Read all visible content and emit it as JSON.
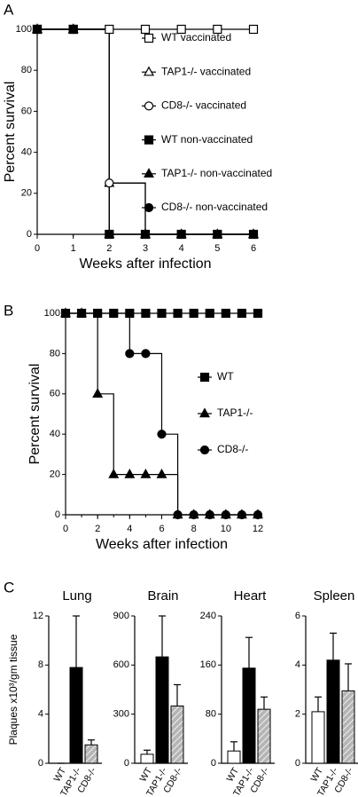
{
  "chart_data": [
    {
      "type": "line",
      "step": true,
      "panel_label": "A",
      "xlabel": "Weeks after infection",
      "ylabel": "Percent survival",
      "x": [
        0,
        1,
        2,
        3,
        4,
        5,
        6
      ],
      "xlim": [
        0,
        6
      ],
      "xticks": [
        0,
        1,
        2,
        3,
        4,
        5,
        6
      ],
      "ylim": [
        0,
        100
      ],
      "yticks": [
        0,
        20,
        40,
        60,
        80,
        100
      ],
      "series": [
        {
          "name": "WT vaccinated",
          "color": "#000000",
          "marker": "square",
          "filled": false,
          "values": [
            100,
            100,
            100,
            100,
            100,
            100,
            100
          ]
        },
        {
          "name": "TAP1-/- vaccinated",
          "color": "#000000",
          "marker": "triangle",
          "filled": false,
          "values": [
            100,
            100,
            25,
            0,
            0,
            0,
            0
          ]
        },
        {
          "name": "CD8-/- vaccinated",
          "color": "#000000",
          "marker": "circle",
          "filled": false,
          "values": [
            100,
            100,
            25,
            0,
            0,
            0,
            0
          ]
        },
        {
          "name": "WT non-vaccinated",
          "color": "#000000",
          "marker": "square",
          "filled": true,
          "values": [
            100,
            100,
            0,
            0,
            0,
            0,
            0
          ]
        },
        {
          "name": "TAP1-/- non-vaccinated",
          "color": "#000000",
          "marker": "triangle",
          "filled": true,
          "values": [
            100,
            100,
            0,
            0,
            0,
            0,
            0
          ]
        },
        {
          "name": "CD8-/- non-vaccinated",
          "color": "#000000",
          "marker": "circle",
          "filled": true,
          "values": [
            100,
            100,
            0,
            0,
            0,
            0,
            0
          ]
        }
      ]
    },
    {
      "type": "line",
      "step": true,
      "panel_label": "B",
      "xlabel": "Weeks after infection",
      "ylabel": "Percent survival",
      "x": [
        0,
        1,
        2,
        3,
        4,
        5,
        6,
        7,
        8,
        9,
        10,
        11,
        12
      ],
      "xlim": [
        0,
        12
      ],
      "xticks": [
        0,
        2,
        4,
        6,
        8,
        10,
        12
      ],
      "ylim": [
        0,
        100
      ],
      "yticks": [
        0,
        20,
        40,
        60,
        80,
        100
      ],
      "series": [
        {
          "name": "WT",
          "color": "#000000",
          "marker": "square",
          "filled": true,
          "values": [
            100,
            100,
            100,
            100,
            100,
            100,
            100,
            100,
            100,
            100,
            100,
            100,
            100
          ]
        },
        {
          "name": "TAP1-/-",
          "color": "#000000",
          "marker": "triangle",
          "filled": true,
          "values": [
            100,
            100,
            60,
            20,
            20,
            20,
            20,
            0,
            0,
            0,
            0,
            0,
            0
          ]
        },
        {
          "name": "CD8-/-",
          "color": "#000000",
          "marker": "circle",
          "filled": true,
          "values": [
            100,
            100,
            100,
            100,
            80,
            80,
            40,
            0,
            0,
            0,
            0,
            0,
            0
          ]
        }
      ]
    },
    {
      "type": "bar",
      "panel_label": "C",
      "title": "Lung",
      "ylabel": "Plaques x10³/gm tissue",
      "categories": [
        "WT",
        "TAP1-/-",
        "CD8-/-"
      ],
      "values": [
        0,
        7.8,
        1.5
      ],
      "errors": [
        0,
        4.2,
        0.4
      ],
      "colors": [
        "#ffffff",
        "#000000",
        "#b5b5b5"
      ],
      "hatched": [
        false,
        false,
        true
      ],
      "ylim": [
        0,
        12
      ],
      "yticks": [
        0,
        4,
        8,
        12
      ]
    },
    {
      "type": "bar",
      "title": "Brain",
      "categories": [
        "WT",
        "TAP1-/-",
        "CD8-/-"
      ],
      "values": [
        55,
        650,
        350
      ],
      "errors": [
        25,
        250,
        130
      ],
      "colors": [
        "#ffffff",
        "#000000",
        "#b5b5b5"
      ],
      "hatched": [
        false,
        false,
        true
      ],
      "ylim": [
        0,
        900
      ],
      "yticks": [
        0,
        300,
        600,
        900
      ]
    },
    {
      "type": "bar",
      "title": "Heart",
      "categories": [
        "WT",
        "TAP1-/-",
        "CD8-/-"
      ],
      "values": [
        20,
        155,
        88
      ],
      "errors": [
        15,
        50,
        20
      ],
      "colors": [
        "#ffffff",
        "#000000",
        "#b5b5b5"
      ],
      "hatched": [
        false,
        false,
        true
      ],
      "ylim": [
        0,
        240
      ],
      "yticks": [
        0,
        80,
        160,
        240
      ]
    },
    {
      "type": "bar",
      "title": "Spleen",
      "categories": [
        "WT",
        "TAP1-/-",
        "CD8-/-"
      ],
      "values": [
        2.1,
        4.2,
        2.95
      ],
      "errors": [
        0.6,
        1.1,
        1.1
      ],
      "colors": [
        "#ffffff",
        "#000000",
        "#b5b5b5"
      ],
      "hatched": [
        false,
        false,
        true
      ],
      "ylim": [
        0,
        6
      ],
      "yticks": [
        0,
        2,
        4,
        6
      ]
    }
  ]
}
